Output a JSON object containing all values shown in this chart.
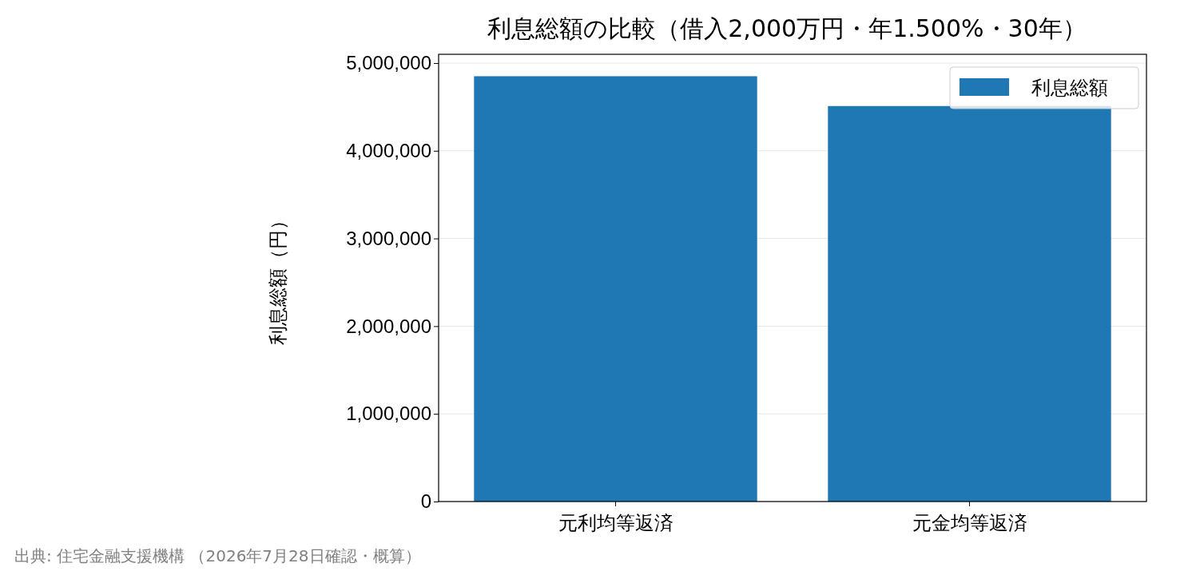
{
  "chart_data": {
    "type": "bar",
    "title": "利息総額の比較（借入2,000万円・年1.500%・30年）",
    "ylabel": "利息総額（円）",
    "categories": [
      "元利均等返済",
      "元金均等返済"
    ],
    "series": [
      {
        "name": "利息総額",
        "color": "#1f77b4",
        "values": [
          4850000,
          4510000
        ]
      }
    ],
    "ylim": [
      0,
      5100000
    ],
    "yticks": [
      {
        "value": 0,
        "label": "0"
      },
      {
        "value": 1000000,
        "label": "1,000,000"
      },
      {
        "value": 2000000,
        "label": "2,000,000"
      },
      {
        "value": 3000000,
        "label": "3,000,000"
      },
      {
        "value": 4000000,
        "label": "4,000,000"
      },
      {
        "value": 5000000,
        "label": "5,000,000"
      }
    ],
    "grid": "y",
    "legend": "top right",
    "annotations": [
      "出典: 住宅金融支援機構 （2026年7月28日確認・概算）"
    ]
  }
}
